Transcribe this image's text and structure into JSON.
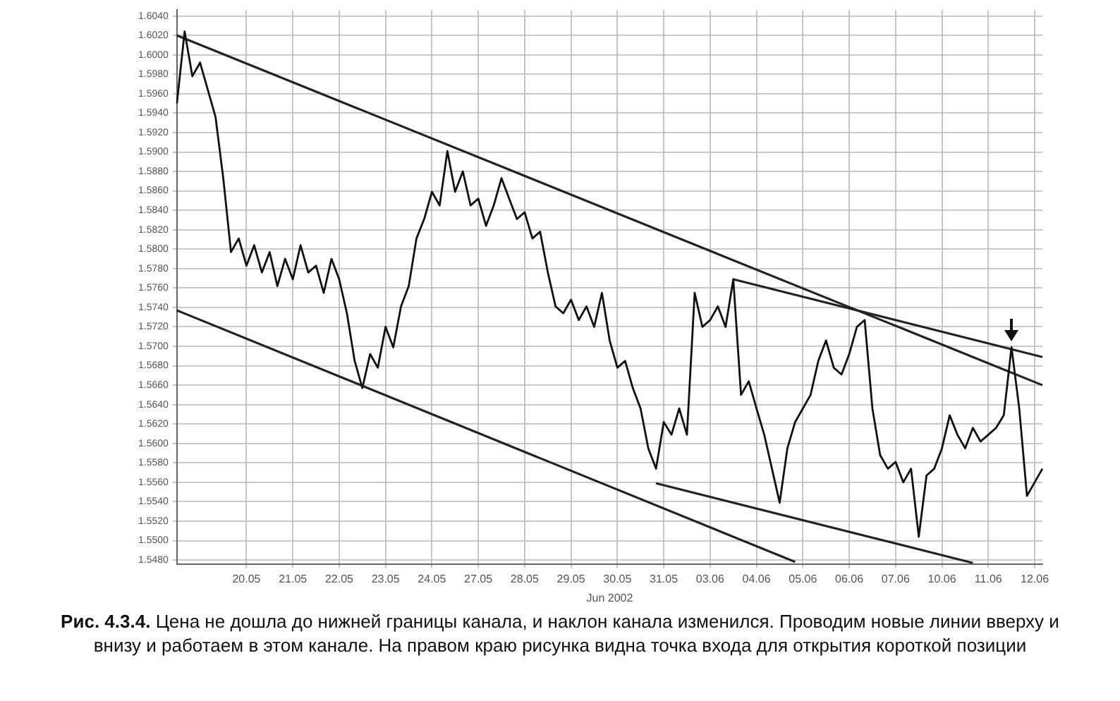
{
  "chart_data": {
    "type": "line",
    "xlabel": "Jun 2002",
    "annotations": [
      "Рис. 4.3.4.",
      "Цена не дошла до нижней границы канала, и наклон канала изменился. Проводим новые линии вверху и внизу и работаем в этом канале. На правом краю рисунка видна точка входа для открытия короткой позиции"
    ],
    "categories": [
      null,
      null,
      null,
      null,
      null,
      null,
      null,
      null,
      null,
      "20.05",
      null,
      null,
      null,
      null,
      null,
      "21.05",
      null,
      null,
      null,
      null,
      null,
      "22.05",
      null,
      null,
      null,
      null,
      null,
      "23.05",
      null,
      null,
      null,
      null,
      null,
      "24.05",
      null,
      null,
      null,
      null,
      null,
      "27.05",
      null,
      null,
      null,
      null,
      null,
      "28.05",
      null,
      null,
      null,
      null,
      null,
      "29.05",
      null,
      null,
      null,
      null,
      null,
      "30.05",
      null,
      null,
      null,
      null,
      null,
      "31.05",
      null,
      null,
      null,
      null,
      null,
      "03.06",
      null,
      null,
      null,
      null,
      null,
      "04.06",
      null,
      null,
      null,
      null,
      null,
      "05.06",
      null,
      null,
      null,
      null,
      null,
      "06.06",
      null,
      null,
      null,
      null,
      null,
      "07.06",
      null,
      null,
      null,
      null,
      null,
      "10.06",
      null,
      null,
      null,
      null,
      null,
      "11.06",
      null,
      null,
      null,
      null,
      null,
      "12.06",
      null
    ],
    "ylim": [
      1.5476,
      1.6046
    ],
    "yticks": [
      {
        "value": 1.548,
        "label": "1.5480"
      },
      {
        "value": 1.55,
        "label": "1.5500"
      },
      {
        "value": 1.552,
        "label": "1.5520"
      },
      {
        "value": 1.554,
        "label": "1.5540"
      },
      {
        "value": 1.556,
        "label": "1.5560"
      },
      {
        "value": 1.558,
        "label": "1.5580"
      },
      {
        "value": 1.56,
        "label": "1.5600"
      },
      {
        "value": 1.562,
        "label": "1.5620"
      },
      {
        "value": 1.564,
        "label": "1.5640"
      },
      {
        "value": 1.566,
        "label": "1.5660"
      },
      {
        "value": 1.568,
        "label": "1.5680"
      },
      {
        "value": 1.57,
        "label": "1.5700"
      },
      {
        "value": 1.572,
        "label": "1.5720"
      },
      {
        "value": 1.574,
        "label": "1.5740"
      },
      {
        "value": 1.576,
        "label": "1.5760"
      },
      {
        "value": 1.578,
        "label": "1.5780"
      },
      {
        "value": 1.58,
        "label": "1.5800"
      },
      {
        "value": 1.582,
        "label": "1.5820"
      },
      {
        "value": 1.584,
        "label": "1.5840"
      },
      {
        "value": 1.586,
        "label": "1.5860"
      },
      {
        "value": 1.588,
        "label": "1.5880"
      },
      {
        "value": 1.59,
        "label": "1.5900"
      },
      {
        "value": 1.592,
        "label": "1.5920"
      },
      {
        "value": 1.594,
        "label": "1.5940"
      },
      {
        "value": 1.596,
        "label": "1.5960"
      },
      {
        "value": 1.598,
        "label": "1.5980"
      },
      {
        "value": 1.6,
        "label": "1.6000"
      },
      {
        "value": 1.602,
        "label": "1.6020"
      },
      {
        "value": 1.604,
        "label": "1.6040"
      }
    ],
    "grid": true,
    "legend": false,
    "marker": "none",
    "line_style": "solid",
    "series": [
      {
        "color": "#111111",
        "values": [
          1.595,
          1.6024,
          1.5978,
          1.5992,
          1.5964,
          1.5936,
          1.5873,
          1.5797,
          1.5811,
          1.5783,
          1.5804,
          1.5776,
          1.5797,
          1.5762,
          1.579,
          1.5769,
          1.5804,
          1.5776,
          1.5783,
          1.5755,
          1.579,
          1.5769,
          1.5734,
          1.5685,
          1.5657,
          1.5692,
          1.5678,
          1.572,
          1.5699,
          1.5741,
          1.5762,
          1.5811,
          1.5831,
          1.5859,
          1.5845,
          1.5901,
          1.5859,
          1.588,
          1.5845,
          1.5852,
          1.5824,
          1.5845,
          1.5873,
          1.5852,
          1.5831,
          1.5838,
          1.5811,
          1.5818,
          1.5776,
          1.5741,
          1.5734,
          1.5748,
          1.5727,
          1.5741,
          1.572,
          1.5755,
          1.5706,
          1.5678,
          1.5685,
          1.5657,
          1.5636,
          1.5595,
          1.5574,
          1.5622,
          1.5609,
          1.5636,
          1.5609,
          1.5755,
          1.572,
          1.5727,
          1.5741,
          1.572,
          1.5769,
          1.565,
          1.5664,
          1.5636,
          1.5609,
          1.5574,
          1.5539,
          1.5595,
          1.5622,
          1.5636,
          1.565,
          1.5685,
          1.5706,
          1.5678,
          1.5671,
          1.5692,
          1.572,
          1.5727,
          1.5636,
          1.5588,
          1.5574,
          1.5581,
          1.556,
          1.5574,
          1.5504,
          1.5567,
          1.5574,
          1.5595,
          1.5629,
          1.5609,
          1.5595,
          1.5616,
          1.5602,
          1.5609,
          1.5616,
          1.5629,
          1.5699,
          1.5636,
          1.5546,
          1.556,
          1.5574
        ]
      },
      {
        "color": "#222222",
        "values": [
          1.602,
          null,
          null,
          null,
          null,
          null,
          null,
          null,
          null,
          null,
          null,
          null,
          null,
          null,
          null,
          null,
          null,
          null,
          null,
          null,
          null,
          null,
          null,
          null,
          null,
          null,
          null,
          null,
          null,
          null,
          null,
          null,
          null,
          null,
          null,
          null,
          null,
          null,
          null,
          null,
          null,
          null,
          null,
          null,
          null,
          null,
          null,
          null,
          null,
          null,
          null,
          null,
          null,
          null,
          null,
          null,
          null,
          null,
          null,
          null,
          null,
          null,
          null,
          null,
          null,
          null,
          null,
          null,
          null,
          null,
          null,
          null,
          null,
          null,
          null,
          null,
          null,
          null,
          null,
          null,
          null,
          null,
          null,
          null,
          null,
          null,
          null,
          null,
          null,
          null,
          null,
          null,
          null,
          null,
          null,
          null,
          null,
          null,
          null,
          null,
          null,
          null,
          null,
          null,
          null,
          null,
          null,
          null,
          null,
          null,
          null,
          null,
          1.566
        ]
      },
      {
        "color": "#222222",
        "values": [
          1.5737,
          null,
          null,
          null,
          null,
          null,
          null,
          null,
          null,
          null,
          null,
          null,
          null,
          null,
          null,
          null,
          null,
          null,
          null,
          null,
          null,
          null,
          null,
          null,
          null,
          null,
          null,
          null,
          null,
          null,
          null,
          null,
          null,
          null,
          null,
          null,
          null,
          null,
          null,
          null,
          null,
          null,
          null,
          null,
          null,
          null,
          null,
          null,
          null,
          null,
          null,
          null,
          null,
          null,
          null,
          null,
          null,
          null,
          null,
          null,
          null,
          null,
          null,
          null,
          null,
          null,
          null,
          null,
          null,
          null,
          null,
          null,
          null,
          null,
          null,
          null,
          null,
          null,
          null,
          null,
          1.5478,
          null,
          null,
          null,
          null,
          null,
          null,
          null,
          null,
          null,
          null,
          null,
          null,
          null,
          null,
          null,
          null,
          null,
          null,
          null,
          null,
          null,
          null,
          null,
          null,
          null,
          null,
          null,
          null,
          null,
          null,
          null,
          null
        ]
      },
      {
        "color": "#222222",
        "values": [
          null,
          null,
          null,
          null,
          null,
          null,
          null,
          null,
          null,
          null,
          null,
          null,
          null,
          null,
          null,
          null,
          null,
          null,
          null,
          null,
          null,
          null,
          null,
          null,
          null,
          null,
          null,
          null,
          null,
          null,
          null,
          null,
          null,
          null,
          null,
          null,
          null,
          null,
          null,
          null,
          null,
          null,
          null,
          null,
          null,
          null,
          null,
          null,
          null,
          null,
          null,
          null,
          null,
          null,
          null,
          null,
          null,
          null,
          null,
          null,
          null,
          null,
          null,
          null,
          null,
          null,
          null,
          null,
          null,
          null,
          null,
          null,
          1.5769,
          null,
          null,
          null,
          null,
          null,
          null,
          null,
          null,
          null,
          null,
          null,
          null,
          null,
          null,
          null,
          null,
          null,
          null,
          null,
          null,
          null,
          null,
          null,
          null,
          null,
          null,
          null,
          null,
          null,
          null,
          null,
          null,
          null,
          null,
          null,
          null,
          null,
          null,
          null,
          1.5689
        ]
      },
      {
        "color": "#222222",
        "values": [
          null,
          null,
          null,
          null,
          null,
          null,
          null,
          null,
          null,
          null,
          null,
          null,
          null,
          null,
          null,
          null,
          null,
          null,
          null,
          null,
          null,
          null,
          null,
          null,
          null,
          null,
          null,
          null,
          null,
          null,
          null,
          null,
          null,
          null,
          null,
          null,
          null,
          null,
          null,
          null,
          null,
          null,
          null,
          null,
          null,
          null,
          null,
          null,
          null,
          null,
          null,
          null,
          null,
          null,
          null,
          null,
          null,
          null,
          null,
          null,
          null,
          null,
          1.5559,
          null,
          null,
          null,
          null,
          null,
          null,
          null,
          null,
          null,
          null,
          null,
          null,
          null,
          null,
          null,
          null,
          null,
          null,
          null,
          null,
          null,
          null,
          null,
          null,
          null,
          null,
          null,
          null,
          null,
          null,
          null,
          null,
          null,
          null,
          null,
          null,
          null,
          null,
          null,
          null,
          1.5477,
          null,
          null,
          null,
          null,
          null,
          null,
          null,
          null,
          null
        ]
      }
    ]
  }
}
